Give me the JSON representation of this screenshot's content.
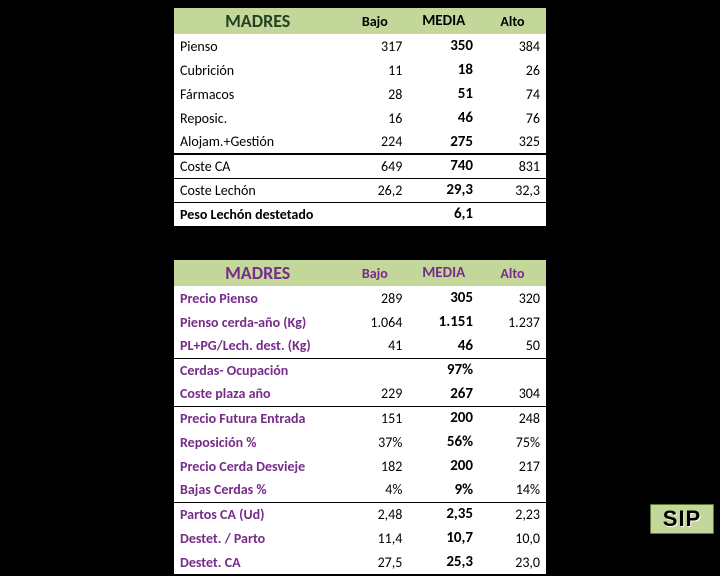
{
  "colors": {
    "headerBg": "#c4d79b",
    "t2Text": "#772b8a",
    "pageBg": "#000000"
  },
  "table1": {
    "title": "MADRES",
    "cols": [
      "Bajo",
      "MEDIA",
      "Alto"
    ],
    "rows": [
      {
        "label": "Pienso",
        "bajo": "317",
        "media": "350",
        "alto": "384"
      },
      {
        "label": "Cubrición",
        "bajo": "11",
        "media": "18",
        "alto": "26"
      },
      {
        "label": "Fármacos",
        "bajo": "28",
        "media": "51",
        "alto": "74"
      },
      {
        "label": "Reposic.",
        "bajo": "16",
        "media": "46",
        "alto": "76"
      },
      {
        "label": "Alojam.+Gestión",
        "bajo": "224",
        "media": "275",
        "alto": "325"
      }
    ],
    "subtotal": {
      "label": "Coste CA",
      "bajo": "649",
      "media": "740",
      "alto": "831"
    },
    "lechon": {
      "label": "Coste Lechón",
      "bajo": "26,2",
      "media": "29,3",
      "alto": "32,3"
    },
    "peso": {
      "label": "Peso Lechón destetado",
      "media": "6,1"
    }
  },
  "table2": {
    "title": "MADRES",
    "cols": [
      "Bajo",
      "MEDIA",
      "Alto"
    ],
    "block1": [
      {
        "label": "Precio Pienso",
        "bajo": "289",
        "media": "305",
        "alto": "320"
      },
      {
        "label": "Pienso cerda-año (Kg)",
        "bajo": "1.064",
        "media": "1.151",
        "alto": "1.237"
      },
      {
        "label": "PL+PG/Lech. dest. (Kg)",
        "bajo": "41",
        "media": "46",
        "alto": "50"
      }
    ],
    "block2": [
      {
        "label": "Cerdas- Ocupación",
        "bajo": "",
        "media": "97%",
        "alto": ""
      },
      {
        "label": "Coste plaza año",
        "bajo": "229",
        "media": "267",
        "alto": "304"
      }
    ],
    "block3": [
      {
        "label": "Precio Futura Entrada",
        "bajo": "151",
        "media": "200",
        "alto": "248"
      },
      {
        "label": "Reposición %",
        "bajo": "37%",
        "media": "56%",
        "alto": "75%"
      },
      {
        "label": "Precio Cerda Desvieje",
        "bajo": "182",
        "media": "200",
        "alto": "217"
      },
      {
        "label": "Bajas Cerdas %",
        "bajo": "4%",
        "media": "9%",
        "alto": "14%"
      }
    ],
    "block4": [
      {
        "label": "Partos CA (Ud)",
        "bajo": "2,48",
        "media": "2,35",
        "alto": "2,23"
      },
      {
        "label": "Destet. / Parto",
        "bajo": "11,4",
        "media": "10,7",
        "alto": "10,0"
      },
      {
        "label": "Destet. CA",
        "bajo": "27,5",
        "media": "25,3",
        "alto": "23,0"
      }
    ]
  },
  "logo": "SIP"
}
